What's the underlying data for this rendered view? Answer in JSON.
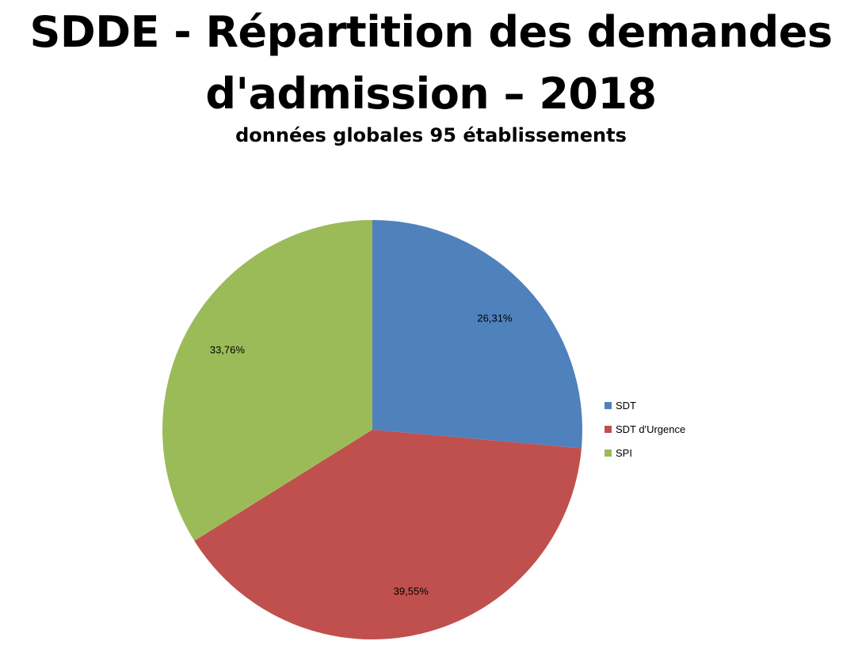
{
  "chart_data": {
    "type": "pie",
    "title": "SDDE - Répartition des demandes d'admission – 2018",
    "subtitle": "données globales 95 établissements",
    "categories": [
      "SDT",
      "SDT d'Urgence",
      "SPI"
    ],
    "values": [
      26.31,
      39.55,
      33.76
    ],
    "labels": [
      "26,31%",
      "39,55%",
      "33,76%"
    ],
    "colors": [
      "#4f81bd",
      "#c0504d",
      "#9bbb59"
    ],
    "legend_position": "right"
  }
}
